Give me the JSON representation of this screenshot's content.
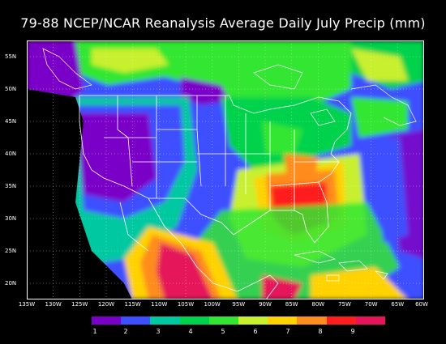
{
  "title": "79-88 NCEP/NCAR Reanalysis Average Daily July Precip (mm)",
  "lat_labels": [
    "55N",
    "50N",
    "45N",
    "40N",
    "35N",
    "30N",
    "25N",
    "20N"
  ],
  "lon_labels": [
    "135W",
    "130W",
    "125W",
    "120W",
    "115W",
    "110W",
    "105W",
    "100W",
    "95W",
    "90W",
    "85W",
    "80W",
    "75W",
    "70W",
    "65W",
    "60W"
  ],
  "colorbar": {
    "colors": [
      "#7a00c8",
      "#3c50ff",
      "#00c8a0",
      "#00d24b",
      "#32e632",
      "#c8f02d",
      "#ffd200",
      "#ff8c1e",
      "#ff1e1e",
      "#e6145a"
    ],
    "labels": [
      "1",
      "2",
      "3",
      "4",
      "5",
      "6",
      "7",
      "8",
      "9"
    ]
  }
}
